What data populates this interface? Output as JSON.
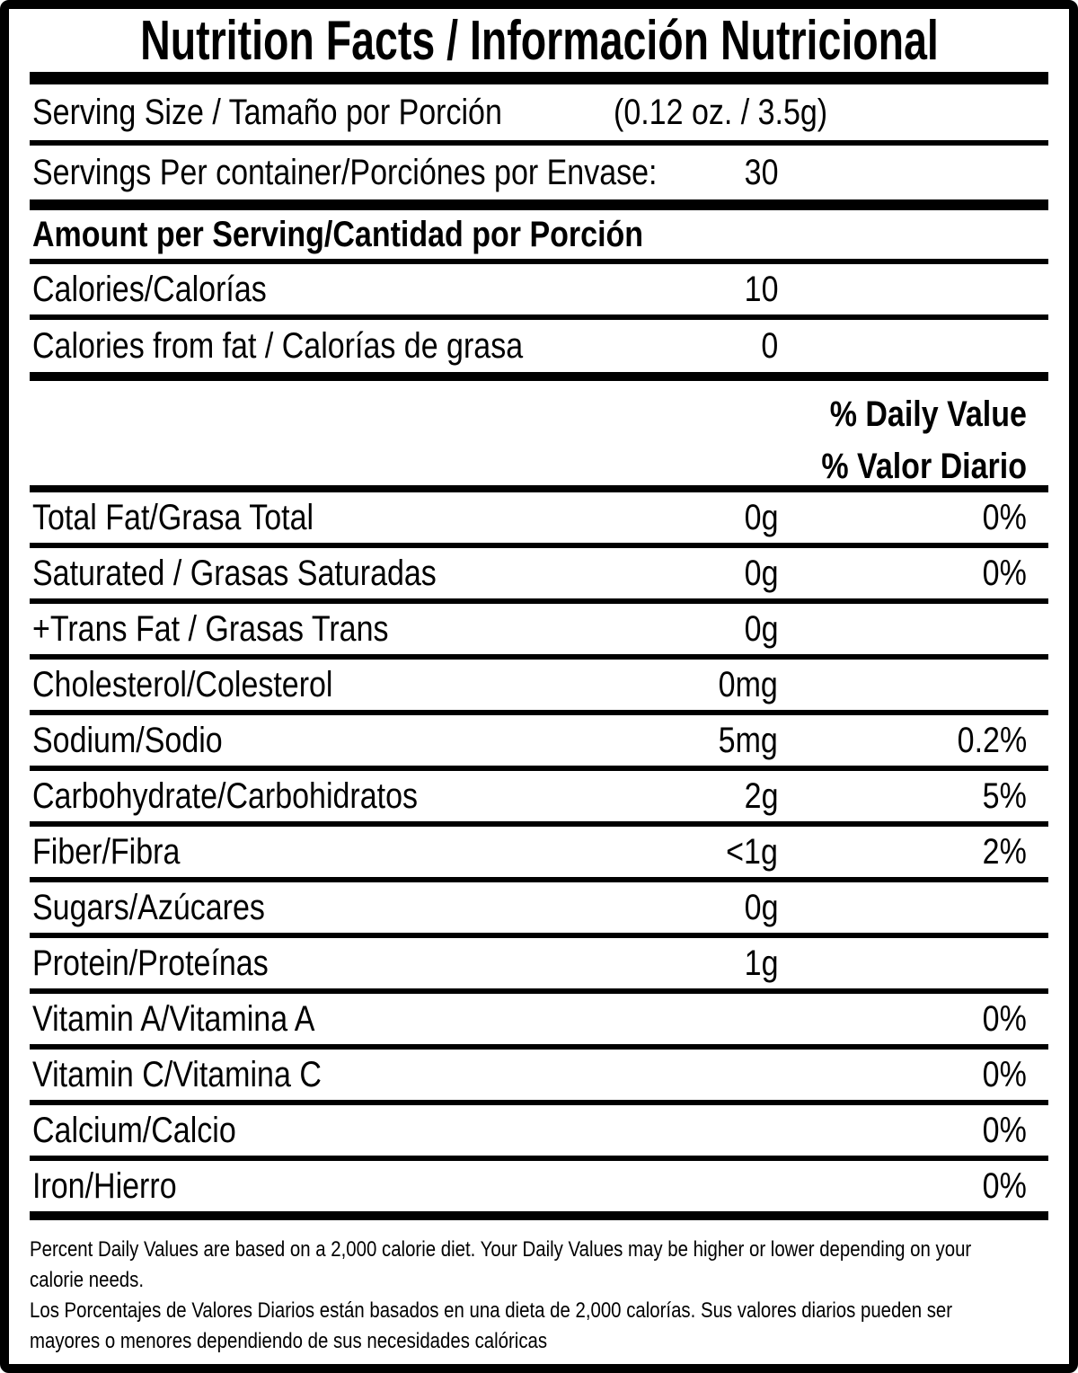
{
  "label": {
    "title": "Nutrition Facts / Información Nutricional",
    "serving_size": {
      "label": "Serving Size / Tamaño por Porción",
      "value": "(0.12 oz. / 3.5g)"
    },
    "servings_per_container": {
      "label": "Servings Per container/Porciónes por Envase:",
      "value": "30"
    },
    "amount_per_serving_header": "Amount per Serving/Cantidad por Porción",
    "calories": {
      "label": "Calories/Calorías",
      "value": "10"
    },
    "calories_from_fat": {
      "label": "Calories from fat / Calorías de grasa",
      "value": "0"
    },
    "daily_value_header": {
      "en": "% Daily Value",
      "es": "% Valor Diario"
    },
    "nutrients": [
      {
        "label": "Total Fat/Grasa Total",
        "amount": "0g",
        "dv": "0%"
      },
      {
        "label": "Saturated / Grasas Saturadas",
        "amount": "0g",
        "dv": "0%"
      },
      {
        "label": "+Trans Fat / Grasas Trans",
        "amount": "0g",
        "dv": ""
      },
      {
        "label": "Cholesterol/Colesterol",
        "amount": "0mg",
        "dv": ""
      },
      {
        "label": "Sodium/Sodio",
        "amount": "5mg",
        "dv": "0.2%"
      },
      {
        "label": "Carbohydrate/Carbohidratos",
        "amount": "2g",
        "dv": "5%"
      },
      {
        "label": "Fiber/Fibra",
        "amount": "<1g",
        "dv": "2%"
      },
      {
        "label": "Sugars/Azúcares",
        "amount": "0g",
        "dv": ""
      },
      {
        "label": "Protein/Proteínas",
        "amount": "1g",
        "dv": ""
      },
      {
        "label": "Vitamin A/Vitamina A",
        "amount": "",
        "dv": "0%"
      },
      {
        "label": "Vitamin C/Vitamina C",
        "amount": "",
        "dv": "0%"
      },
      {
        "label": "Calcium/Calcio",
        "amount": "",
        "dv": "0%"
      },
      {
        "label": "Iron/Hierro",
        "amount": "",
        "dv": "0%"
      }
    ],
    "footnote": {
      "en_lines": [
        "Percent Daily Values are based on a 2,000 calorie diet. Your Daily Values may be higher or lower depending on your",
        "calorie needs."
      ],
      "es_lines": [
        "Los Porcentajes de Valores Diarios están basados en una dieta de 2,000 calorías. Sus valores diarios pueden ser",
        "mayores o menores dependiendo de sus necesidades calóricas"
      ]
    },
    "colors": {
      "ink": "#000000",
      "background": "#ffffff"
    }
  }
}
